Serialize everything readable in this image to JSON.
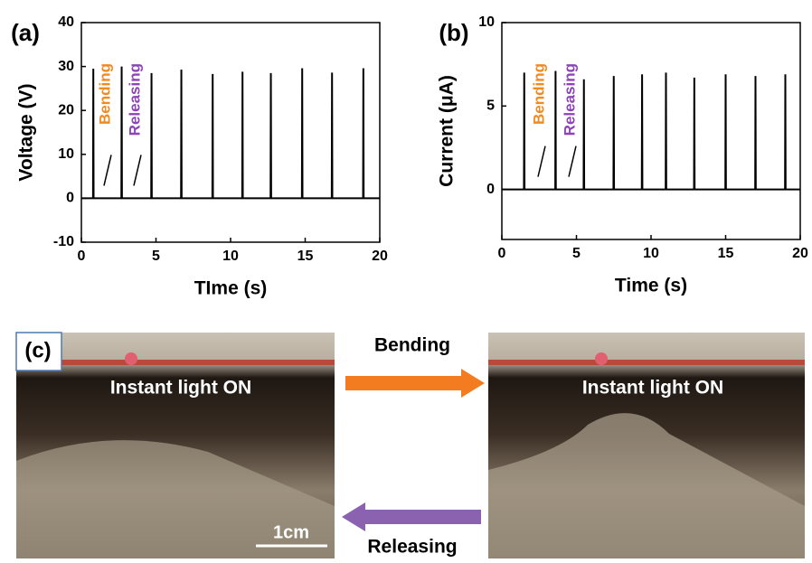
{
  "chart_data": [
    {
      "type": "line",
      "panel": "(a)",
      "xlabel": "TIme (s)",
      "ylabel": "Voltage (V)",
      "xlim": [
        0,
        20
      ],
      "xticks": [
        0,
        5,
        10,
        15,
        20
      ],
      "ylim": [
        -10,
        40
      ],
      "yticks": [
        -10,
        0,
        10,
        20,
        30,
        40
      ],
      "color": "#000000",
      "x": [
        0,
        0.78,
        0.8,
        0.82,
        2.68,
        2.7,
        2.72,
        4.68,
        4.7,
        4.72,
        6.68,
        6.7,
        6.72,
        8.78,
        8.8,
        8.82,
        10.78,
        10.8,
        10.82,
        12.68,
        12.7,
        12.72,
        14.78,
        14.8,
        14.82,
        16.78,
        16.8,
        16.82,
        18.88,
        18.9,
        18.92,
        20
      ],
      "values": [
        0,
        0,
        29.5,
        0,
        0,
        30,
        0,
        0,
        28.5,
        0,
        0,
        29.3,
        0,
        0,
        28.3,
        0,
        0,
        28.8,
        0,
        0,
        28.5,
        0,
        0,
        29.6,
        0,
        0,
        28.6,
        0,
        0,
        29.6,
        0,
        0
      ],
      "annotations": [
        {
          "text": "Bending",
          "color": "#f28a1e"
        },
        {
          "text": "Releasing",
          "color": "#8e44b8"
        }
      ]
    },
    {
      "type": "line",
      "panel": "(b)",
      "xlabel": "Time (s)",
      "ylabel": "Current (μA)",
      "xlim": [
        0,
        20
      ],
      "xticks": [
        0,
        5,
        10,
        15,
        20
      ],
      "ylim": [
        -3,
        10
      ],
      "yticks": [
        0,
        5,
        10
      ],
      "color": "#000000",
      "x": [
        0,
        1.48,
        1.5,
        1.52,
        3.58,
        3.6,
        3.62,
        5.48,
        5.5,
        5.52,
        7.48,
        7.5,
        7.52,
        9.38,
        9.4,
        9.42,
        10.98,
        11.0,
        11.02,
        12.88,
        12.9,
        12.92,
        14.98,
        15.0,
        15.02,
        16.98,
        17.0,
        17.02,
        18.98,
        19.0,
        19.02,
        20
      ],
      "values": [
        0,
        0,
        7.0,
        0,
        0,
        7.1,
        0,
        0,
        6.6,
        0,
        0,
        6.8,
        0,
        0,
        6.9,
        0,
        0,
        7.0,
        0,
        0,
        6.7,
        0,
        0,
        6.9,
        0,
        0,
        6.8,
        0,
        0,
        6.9,
        0,
        0
      ],
      "annotations": [
        {
          "text": "Bending",
          "color": "#f28a1e"
        },
        {
          "text": "Releasing",
          "color": "#8e44b8"
        }
      ]
    }
  ],
  "panel_c": {
    "label": "(c)",
    "left_caption": "Instant light ON",
    "right_caption": "Instant light ON",
    "arrow_forward": "Bending",
    "arrow_back": "Releasing",
    "scale_bar": "1cm"
  }
}
